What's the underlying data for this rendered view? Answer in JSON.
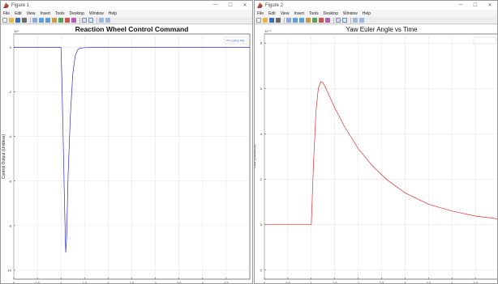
{
  "windows": [
    {
      "title": "Figure 1",
      "menu": [
        "File",
        "Edit",
        "View",
        "Insert",
        "Tools",
        "Desktop",
        "Window",
        "Help"
      ]
    },
    {
      "title": "Figure 2",
      "menu": [
        "File",
        "Edit",
        "View",
        "Insert",
        "Tools",
        "Desktop",
        "Window",
        "Help"
      ]
    }
  ],
  "window_controls": {
    "minimize": "—",
    "maximize": "☐",
    "close": "✕"
  },
  "chart_data": [
    {
      "type": "line",
      "title": "Reaction Wheel Control Command",
      "xlabel": "Time (seconds)",
      "ylabel": "Control Output (Unitless)",
      "exponent": "10⁴",
      "xlim": [
        0,
        5
      ],
      "ylim": [
        -10.4,
        0.6
      ],
      "xticks": [
        0,
        0.5,
        1,
        1.5,
        2,
        2.5,
        3,
        3.5,
        4,
        4.5
      ],
      "xtick_labels": [
        "0",
        "0.5",
        "1",
        "1.5",
        "2",
        "2.5",
        "3",
        "3.5",
        "4",
        "4.5"
      ],
      "yticks": [
        0,
        -2,
        -4,
        -6,
        -8,
        -10
      ],
      "ytick_labels": [
        "0",
        "-2",
        "-4",
        "-6",
        "-8",
        "-10"
      ],
      "grid": true,
      "legend": {
        "position": "top-right",
        "entries": [
          "Control PID"
        ]
      },
      "series": [
        {
          "name": "Control PID",
          "color": "#2b2bd6",
          "x": [
            0,
            1.0,
            1.02,
            1.05,
            1.08,
            1.1,
            1.12,
            1.15,
            1.2,
            1.25,
            1.3,
            1.35,
            1.4,
            1.5,
            1.7,
            2.0,
            5.0
          ],
          "y": [
            0,
            0,
            -1.5,
            -4.5,
            -7.5,
            -9.2,
            -8.5,
            -5.8,
            -3.0,
            -1.2,
            -0.4,
            -0.12,
            -0.04,
            -0.01,
            0,
            0,
            0
          ]
        }
      ]
    },
    {
      "type": "line",
      "title": "Yaw Euler Angle vs Time",
      "xlabel": "Time (seconds)",
      "ylabel": "Yaw (radians)",
      "exponent": "10⁻³",
      "xlim": [
        0,
        5
      ],
      "ylim": [
        -2.4,
        8.4
      ],
      "xticks": [
        0,
        0.5,
        1,
        1.5,
        2,
        2.5,
        3,
        3.5,
        4,
        4.5
      ],
      "xtick_labels": [
        "0",
        "0.5",
        "1",
        "1.5",
        "2",
        "2.5",
        "3",
        "3.5",
        "4",
        "4.5"
      ],
      "yticks": [
        8,
        6,
        4,
        2,
        0,
        -2
      ],
      "ytick_labels": [
        "8",
        "6",
        "4",
        "2",
        "0",
        "-2"
      ],
      "grid": true,
      "legend": {
        "position": "top-right",
        "entries": []
      },
      "series": [
        {
          "color": "#e03030",
          "x": [
            0,
            1.0,
            1.05,
            1.1,
            1.15,
            1.2,
            1.25,
            1.3,
            1.4,
            1.5,
            1.7,
            2.0,
            2.3,
            2.6,
            3.0,
            3.5,
            4.0,
            4.5,
            5.0
          ],
          "y": [
            0,
            0,
            2.8,
            5.0,
            6.0,
            6.3,
            6.25,
            6.05,
            5.6,
            5.15,
            4.35,
            3.35,
            2.6,
            2.0,
            1.4,
            0.9,
            0.6,
            0.38,
            0.25
          ]
        }
      ]
    }
  ]
}
